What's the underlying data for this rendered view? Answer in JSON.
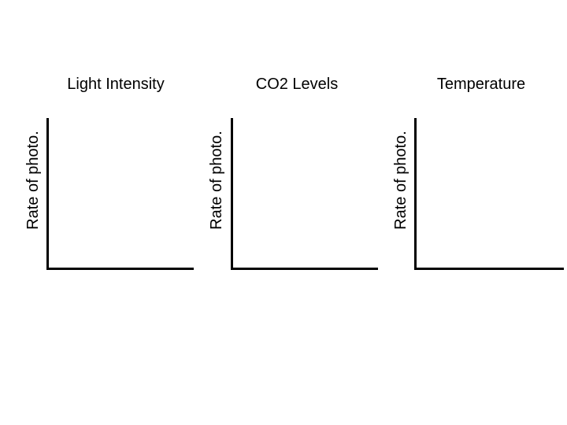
{
  "panels": [
    {
      "title": "Light Intensity",
      "ylabel": "Rate of photo."
    },
    {
      "title": "CO2 Levels",
      "ylabel": "Rate of photo."
    },
    {
      "title": "Temperature",
      "ylabel": "Rate of photo."
    }
  ]
}
